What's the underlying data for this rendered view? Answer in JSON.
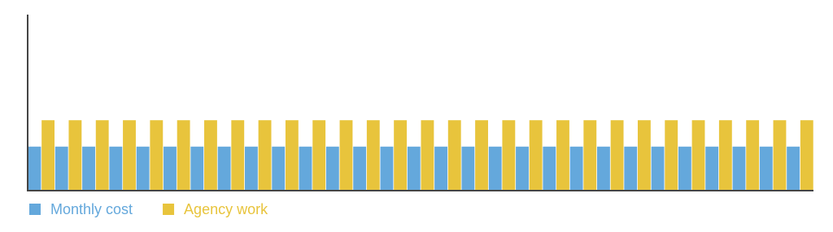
{
  "chart_data": {
    "type": "bar",
    "categories": [
      null,
      null,
      null,
      null,
      null,
      null,
      null,
      null,
      null,
      null,
      null,
      null,
      null,
      null,
      null,
      null,
      null,
      null,
      null,
      null,
      null,
      null,
      null,
      null,
      null,
      null,
      null,
      null,
      null
    ],
    "series": [
      {
        "name": "Monthly cost",
        "color": "#64a8dc",
        "values": [
          25,
          25,
          25,
          25,
          25,
          25,
          25,
          25,
          25,
          25,
          25,
          25,
          25,
          25,
          25,
          25,
          25,
          25,
          25,
          25,
          25,
          25,
          25,
          25,
          25,
          25,
          25,
          25,
          25
        ]
      },
      {
        "name": "Agency work",
        "color": "#e8c43c",
        "values": [
          40,
          40,
          40,
          40,
          40,
          40,
          40,
          40,
          40,
          40,
          40,
          40,
          40,
          40,
          40,
          40,
          40,
          40,
          40,
          40,
          40,
          40,
          40,
          40,
          40,
          40,
          40,
          40,
          40
        ]
      }
    ],
    "ylim": [
      0,
      100
    ],
    "grid": false
  }
}
